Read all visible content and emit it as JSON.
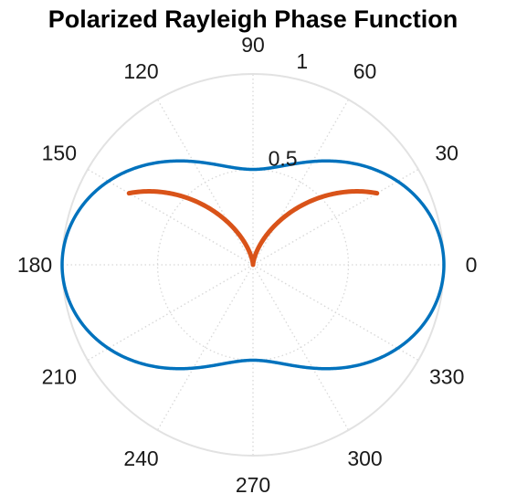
{
  "chart_data": {
    "type": "line",
    "subtype": "polar",
    "title": "Polarized Rayleigh Phase Function",
    "theta_unit": "degrees",
    "theta_ticks": [
      0,
      30,
      60,
      90,
      120,
      150,
      180,
      210,
      240,
      270,
      300,
      330
    ],
    "theta_tick_labels": [
      "0",
      "30",
      "60",
      "90",
      "120",
      "150",
      "180",
      "210",
      "240",
      "270",
      "300",
      "330"
    ],
    "r_ticks": [
      0.5,
      1
    ],
    "r_tick_labels": [
      "0.5",
      "1"
    ],
    "rlim": [
      0,
      1
    ],
    "r_tick_label_angle_deg": 75,
    "grid": true,
    "grid_style": "dotted",
    "series": [
      {
        "formula": "r = (1 + cos^2(theta)) / 2",
        "theta_range_deg": [
          0,
          360
        ],
        "color": "#0072BD",
        "values_sample": [
          {
            "theta": 0,
            "r": 1.0
          },
          {
            "theta": 30,
            "r": 0.875
          },
          {
            "theta": 60,
            "r": 0.625
          },
          {
            "theta": 90,
            "r": 0.5
          },
          {
            "theta": 120,
            "r": 0.625
          },
          {
            "theta": 150,
            "r": 0.875
          },
          {
            "theta": 180,
            "r": 1.0
          },
          {
            "theta": 210,
            "r": 0.875
          },
          {
            "theta": 240,
            "r": 0.625
          },
          {
            "theta": 270,
            "r": 0.5
          },
          {
            "theta": 300,
            "r": 0.625
          },
          {
            "theta": 330,
            "r": 0.875
          }
        ]
      },
      {
        "formula": "r = cos^2(theta)",
        "theta_range_deg": [
          30,
          150
        ],
        "color": "#D95319",
        "values_sample": [
          {
            "theta": 30,
            "r": 0.75
          },
          {
            "theta": 60,
            "r": 0.25
          },
          {
            "theta": 90,
            "r": 0.0
          },
          {
            "theta": 120,
            "r": 0.25
          },
          {
            "theta": 150,
            "r": 0.75
          }
        ]
      }
    ]
  }
}
